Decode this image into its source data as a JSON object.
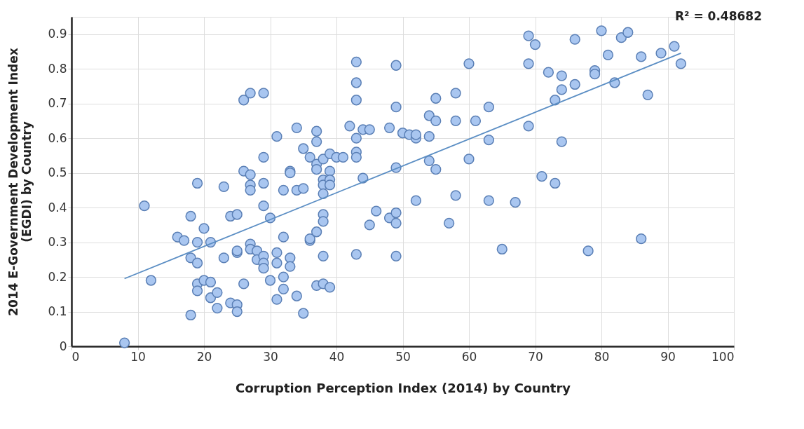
{
  "chart_data": {
    "type": "scatter",
    "xlabel": "Corruption Perception Index (2014) by Country",
    "ylabel": "2014 E-Government Development Index\n(EGDI)  by Country",
    "annotations": [
      "R² = 0.48682"
    ],
    "xlim": [
      0,
      100
    ],
    "xticks": [
      0,
      10,
      20,
      30,
      40,
      50,
      60,
      70,
      80,
      90,
      100
    ],
    "ylim": [
      0,
      0.95
    ],
    "yticks": [
      0,
      0.1,
      0.2,
      0.3,
      0.4,
      0.5,
      0.6,
      0.7,
      0.8,
      0.9
    ],
    "grid": true,
    "series": [
      {
        "color": "#a9c6f0",
        "marker": "circle",
        "x": [
          8,
          11,
          12,
          16,
          17,
          18,
          18,
          18,
          19,
          19,
          19,
          19,
          19,
          20,
          20,
          21,
          21,
          21,
          22,
          22,
          23,
          23,
          24,
          24,
          25,
          25,
          25,
          25,
          25,
          26,
          26,
          26,
          27,
          27,
          27,
          27,
          27,
          27,
          28,
          28,
          29,
          29,
          29,
          29,
          29,
          29,
          29,
          30,
          30,
          31,
          31,
          31,
          31,
          32,
          32,
          32,
          32,
          33,
          33,
          33,
          33,
          34,
          34,
          34,
          35,
          35,
          35,
          36,
          36,
          36,
          37,
          37,
          37,
          37,
          37,
          37,
          38,
          38,
          38,
          38,
          38,
          38,
          38,
          38,
          39,
          39,
          39,
          39,
          39,
          40,
          41,
          42,
          43,
          43,
          43,
          43,
          43,
          43,
          43,
          44,
          44,
          45,
          45,
          46,
          48,
          48,
          49,
          49,
          49,
          49,
          49,
          49,
          50,
          51,
          52,
          52,
          52,
          54,
          54,
          54,
          55,
          55,
          55,
          57,
          58,
          58,
          58,
          60,
          60,
          61,
          63,
          63,
          63,
          65,
          67,
          69,
          69,
          69,
          70,
          71,
          72,
          73,
          73,
          74,
          74,
          74,
          76,
          76,
          78,
          79,
          79,
          80,
          81,
          82,
          83,
          84,
          86,
          86,
          87,
          89,
          91,
          92
        ],
        "values": [
          0.01,
          0.405,
          0.19,
          0.315,
          0.305,
          0.375,
          0.255,
          0.09,
          0.47,
          0.3,
          0.24,
          0.18,
          0.16,
          0.34,
          0.19,
          0.3,
          0.185,
          0.14,
          0.155,
          0.11,
          0.46,
          0.255,
          0.375,
          0.125,
          0.38,
          0.27,
          0.275,
          0.12,
          0.1,
          0.71,
          0.505,
          0.18,
          0.73,
          0.495,
          0.465,
          0.45,
          0.295,
          0.28,
          0.275,
          0.25,
          0.73,
          0.545,
          0.47,
          0.405,
          0.26,
          0.24,
          0.225,
          0.37,
          0.19,
          0.605,
          0.27,
          0.24,
          0.135,
          0.45,
          0.315,
          0.2,
          0.165,
          0.505,
          0.5,
          0.255,
          0.23,
          0.63,
          0.45,
          0.145,
          0.57,
          0.455,
          0.095,
          0.545,
          0.305,
          0.31,
          0.62,
          0.59,
          0.525,
          0.51,
          0.33,
          0.175,
          0.54,
          0.48,
          0.465,
          0.44,
          0.38,
          0.36,
          0.26,
          0.18,
          0.555,
          0.505,
          0.48,
          0.465,
          0.17,
          0.545,
          0.545,
          0.635,
          0.82,
          0.76,
          0.71,
          0.6,
          0.56,
          0.545,
          0.265,
          0.625,
          0.485,
          0.625,
          0.35,
          0.39,
          0.63,
          0.37,
          0.81,
          0.69,
          0.515,
          0.385,
          0.355,
          0.26,
          0.615,
          0.61,
          0.6,
          0.61,
          0.42,
          0.665,
          0.605,
          0.535,
          0.715,
          0.65,
          0.51,
          0.355,
          0.73,
          0.65,
          0.435,
          0.815,
          0.54,
          0.65,
          0.69,
          0.595,
          0.42,
          0.28,
          0.415,
          0.895,
          0.815,
          0.635,
          0.87,
          0.49,
          0.79,
          0.71,
          0.47,
          0.78,
          0.74,
          0.59,
          0.885,
          0.755,
          0.275,
          0.795,
          0.785,
          0.91,
          0.84,
          0.76,
          0.89,
          0.905,
          0.835,
          0.31,
          0.725,
          0.845,
          0.865,
          0.815
        ]
      },
      {
        "type": "line",
        "marker": "none",
        "line_style": "solid",
        "color": "#5b8ec4",
        "x": [
          8,
          92
        ],
        "values": [
          0.195,
          0.845
        ]
      }
    ]
  }
}
